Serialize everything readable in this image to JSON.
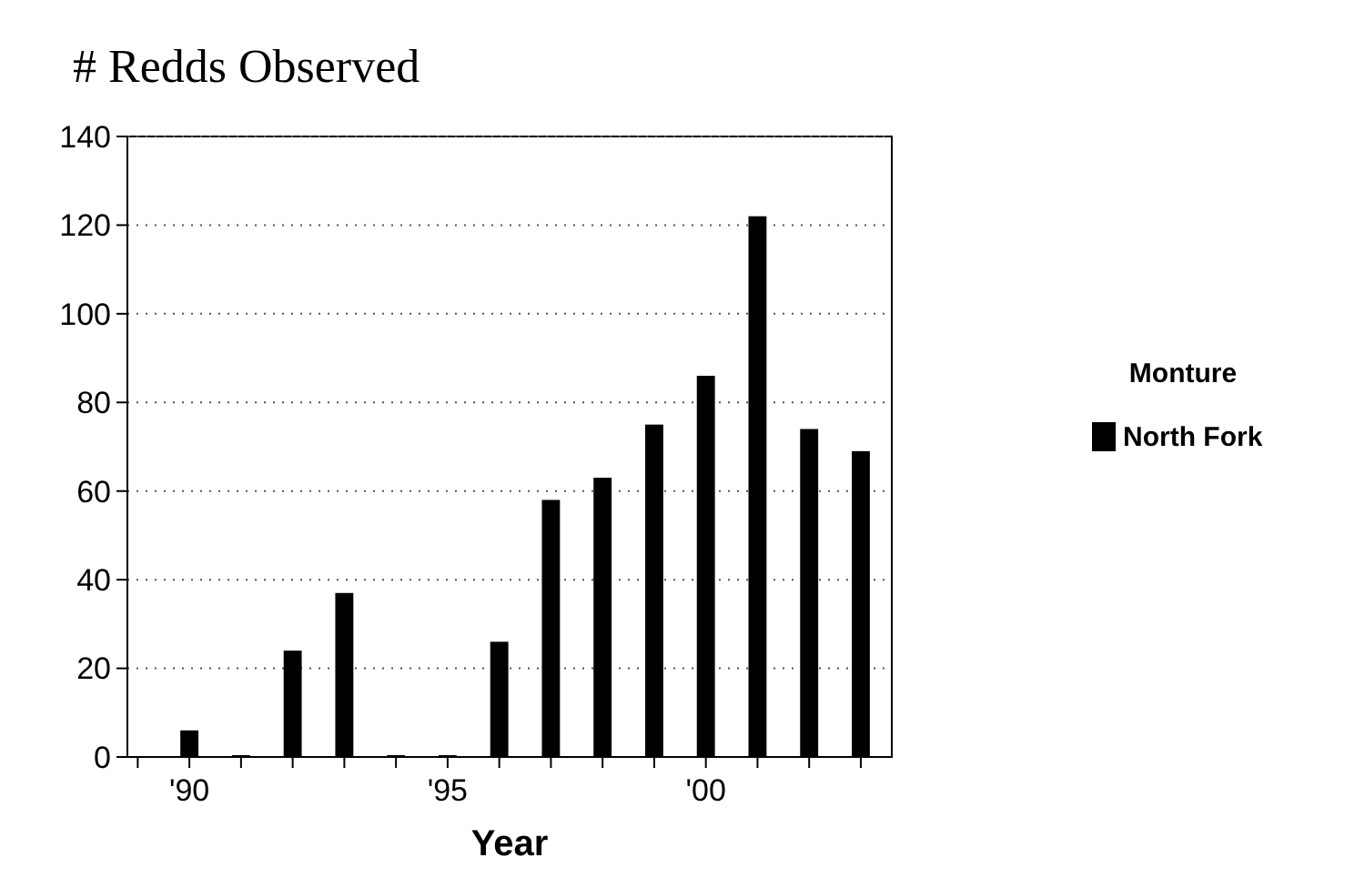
{
  "chart_data": {
    "type": "bar",
    "title": "# Redds Observed",
    "xlabel": "Year",
    "legend_title": "Monture",
    "legend": "right",
    "grid": "y",
    "x": [
      1990,
      1991,
      1992,
      1993,
      1994,
      1995,
      1996,
      1997,
      1998,
      1999,
      2000,
      2001,
      2002,
      2003
    ],
    "series": [
      {
        "name": "North Fork",
        "color": "#000000",
        "values": [
          6,
          0,
          24,
          37,
          0,
          0,
          26,
          58,
          63,
          75,
          86,
          122,
          74,
          69
        ]
      }
    ],
    "xlim": [
      1988.8,
      2003.6
    ],
    "xticks": [
      {
        "value": 1989,
        "label": null
      },
      {
        "value": 1990,
        "label": "'90"
      },
      {
        "value": 1991,
        "label": null
      },
      {
        "value": 1992,
        "label": null
      },
      {
        "value": 1993,
        "label": null
      },
      {
        "value": 1994,
        "label": null
      },
      {
        "value": 1995,
        "label": "'95"
      },
      {
        "value": 1996,
        "label": null
      },
      {
        "value": 1997,
        "label": null
      },
      {
        "value": 1998,
        "label": null
      },
      {
        "value": 1999,
        "label": null
      },
      {
        "value": 2000,
        "label": "'00"
      },
      {
        "value": 2001,
        "label": null
      },
      {
        "value": 2002,
        "label": null
      },
      {
        "value": 2003,
        "label": null
      }
    ],
    "ylim": [
      0,
      140
    ],
    "yticks": [
      0,
      20,
      40,
      60,
      80,
      100,
      120,
      140
    ]
  }
}
